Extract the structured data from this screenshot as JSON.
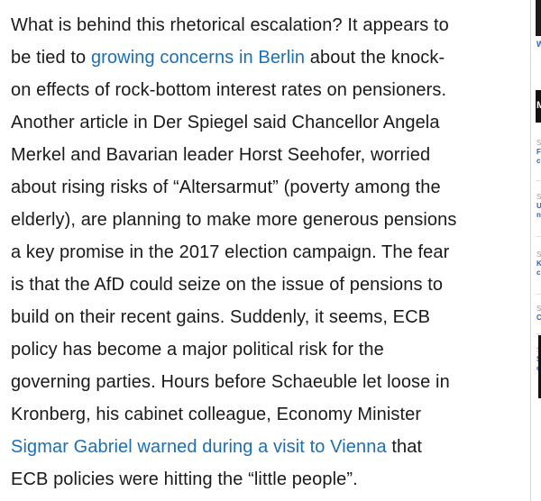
{
  "article": {
    "lines": [
      {
        "t1": "What is behind this rhetorical escalation? It appears to"
      },
      {
        "t1": "be tied to ",
        "link": "growing concerns in Berlin",
        "t2": " about the knock-"
      },
      {
        "t1": "on effects of rock-bottom interest rates on pensioners."
      },
      {
        "t1": "Another article in Der Spiegel said Chancellor Angela"
      },
      {
        "t1": "Merkel and Bavarian leader Horst Seehofer, worried"
      },
      {
        "t1": "about rising risks of “Altersarmut” (poverty among the"
      },
      {
        "t1": "elderly), are planning to make more generous pensions"
      },
      {
        "t1": "a key promise in the 2017 election campaign. The fear"
      },
      {
        "t1": "is that the AfD could seize on the issue of pensions to"
      },
      {
        "t1": "build on their recent gains. Suddenly, it seems, ECB"
      },
      {
        "t1": "policy has become a major political risk for the"
      },
      {
        "t1": "governing parties. Hours before Schaeuble let loose in"
      },
      {
        "t1": "Kronberg, his cabinet colleague, Economy Minister"
      },
      {
        "t1": "",
        "link": "Sigmar Gabriel warned during a visit to Vienna",
        "t2": " that"
      },
      {
        "t1": "ECB policies were hitting the “little people”."
      }
    ]
  },
  "sidebar": {
    "top_link": "W",
    "header": "M",
    "items": [
      {
        "s": "S",
        "a": "F",
        "b": "c"
      },
      {
        "s": "S",
        "a": "U",
        "b": "n"
      },
      {
        "s": "S",
        "a": "K",
        "b": "c"
      },
      {
        "s": "S",
        "a": "C",
        "b": ""
      },
      {
        "s": "S",
        "a": "S",
        "b": "c"
      }
    ]
  },
  "colors": {
    "text": "#1a1a1a",
    "link": "#1a6fb5",
    "sidebar_link": "#2a62a8"
  }
}
